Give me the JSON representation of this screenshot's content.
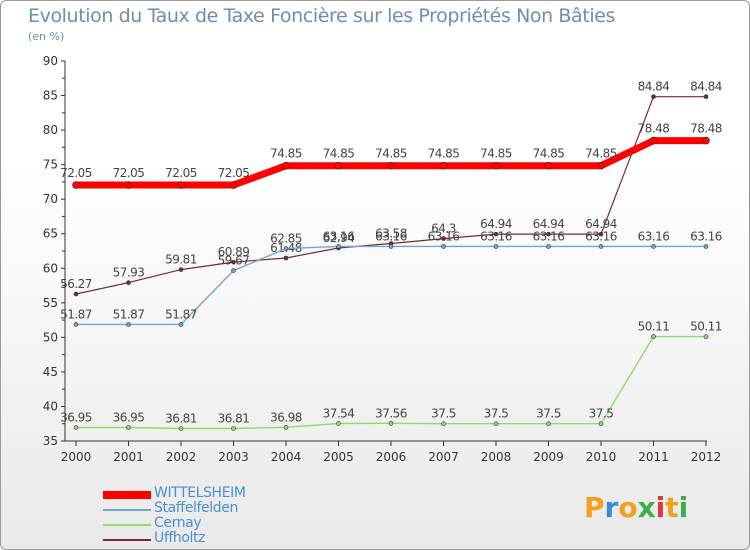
{
  "header": {
    "title": "Evolution du Taux de Taxe Foncière sur les Propriétés Non Bâties",
    "unit": "(en %)"
  },
  "brand": {
    "letters": [
      "P",
      "r",
      "o",
      "x",
      "i",
      "t",
      "i"
    ],
    "colors": [
      "#f2a11f",
      "#2f8fd6",
      "#f2a11f",
      "#3bb04a",
      "#d93a3a",
      "#f2a11f",
      "#3bb04a"
    ]
  },
  "chart_data": {
    "type": "line",
    "x": [
      "2000",
      "2001",
      "2002",
      "2003",
      "2004",
      "2005",
      "2006",
      "2007",
      "2008",
      "2009",
      "2010",
      "2011",
      "2012"
    ],
    "ylim": [
      35,
      90
    ],
    "yticks": [
      "35",
      "40",
      "45",
      "50",
      "55",
      "60",
      "65",
      "70",
      "75",
      "80",
      "85",
      "90"
    ],
    "grid": false,
    "legend_position": "bottom-left",
    "series": [
      {
        "name": "Uffholtz",
        "color": "#7a2a2a",
        "stroke": 1.2,
        "marker": 4,
        "values": [
          56.27,
          57.93,
          59.81,
          60.89,
          61.48,
          62.94,
          63.58,
          64.3,
          64.94,
          64.94,
          64.94,
          84.84,
          84.84
        ],
        "labels": [
          "56.27",
          "57.93",
          "59.81",
          "60.89",
          "61.48",
          "62.94",
          "63.58",
          "64.3",
          "64.94",
          "64.94",
          "64.94",
          "84.84",
          "84.84"
        ]
      },
      {
        "name": "Cernay",
        "color": "#8fdc6c",
        "stroke": 1.4,
        "marker": 4,
        "values": [
          36.95,
          36.95,
          36.81,
          36.81,
          36.98,
          37.54,
          37.56,
          37.5,
          37.5,
          37.5,
          37.5,
          50.11,
          50.11
        ],
        "labels": [
          "36.95",
          "36.95",
          "36.81",
          "36.81",
          "36.98",
          "37.54",
          "37.56",
          "37.5",
          "37.5",
          "37.5",
          "37.5",
          "50.11",
          "50.11"
        ]
      },
      {
        "name": "Staffelfelden",
        "color": "#6fa6d6",
        "stroke": 1.4,
        "marker": 4,
        "values": [
          51.87,
          51.87,
          51.87,
          59.67,
          62.85,
          63.16,
          63.16,
          63.16,
          63.16,
          63.16,
          63.16,
          63.16,
          63.16
        ],
        "labels": [
          "51.87",
          "51.87",
          "51.87",
          "59.67",
          "62.85",
          "63.16",
          "63.16",
          "63.16",
          "63.16",
          "63.16",
          "63.16",
          "63.16",
          "63.16"
        ]
      },
      {
        "name": "WITTELSHEIM",
        "color": "#ff0000",
        "stroke": 7,
        "marker": 7,
        "values": [
          72.05,
          72.05,
          72.05,
          72.05,
          74.85,
          74.85,
          74.85,
          74.85,
          74.85,
          74.85,
          74.85,
          78.48,
          78.48
        ],
        "labels": [
          "72.05",
          "72.05",
          "72.05",
          "72.05",
          "74.85",
          "74.85",
          "74.85",
          "74.85",
          "74.85",
          "74.85",
          "74.85",
          "78.48",
          "78.48"
        ]
      }
    ]
  },
  "legend": [
    {
      "name": "WITTELSHEIM",
      "color": "#ff0000"
    },
    {
      "name": "Staffelfelden",
      "color": "#6fa6d6"
    },
    {
      "name": "Cernay",
      "color": "#8fdc6c"
    },
    {
      "name": "Uffholtz",
      "color": "#7a2a2a"
    }
  ]
}
